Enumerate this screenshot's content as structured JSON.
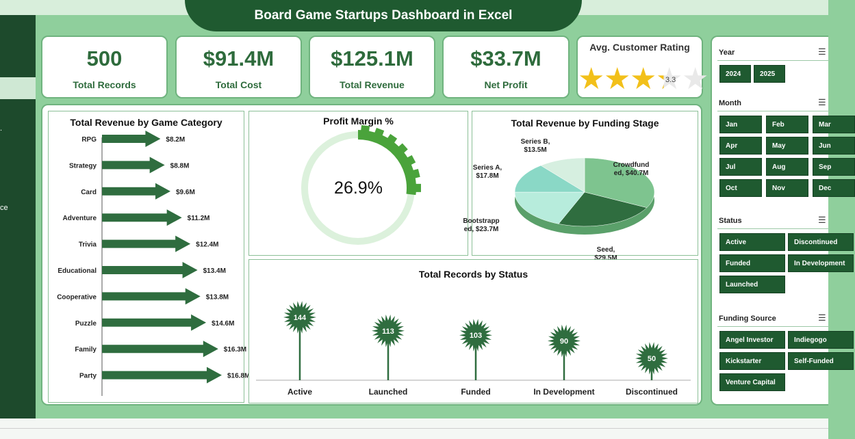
{
  "header": {
    "title": "Board Game Startups Dashboard in Excel"
  },
  "left_rail": {
    "visible_text": "ce"
  },
  "kpis": [
    {
      "value": "500",
      "label": "Total Records"
    },
    {
      "value": "$91.4M",
      "label": "Total Cost"
    },
    {
      "value": "$125.1M",
      "label": "Total Revenue"
    },
    {
      "value": "$33.7M",
      "label": "Net Profit"
    }
  ],
  "rating": {
    "title": "Avg. Customer Rating",
    "value": "3.3",
    "stars_filled": 3.3,
    "stars_total": 5,
    "star_color": "#f2c01a"
  },
  "category_chart": {
    "title": "Total Revenue  by Game Category",
    "rows": [
      {
        "label": "RPG",
        "value": 8.2,
        "display": "$8.2M"
      },
      {
        "label": "Strategy",
        "value": 8.8,
        "display": "$8.8M"
      },
      {
        "label": "Card",
        "value": 9.6,
        "display": "$9.6M"
      },
      {
        "label": "Adventure",
        "value": 11.2,
        "display": "$11.2M"
      },
      {
        "label": "Trivia",
        "value": 12.4,
        "display": "$12.4M"
      },
      {
        "label": "Educational",
        "value": 13.4,
        "display": "$13.4M"
      },
      {
        "label": "Cooperative",
        "value": 13.8,
        "display": "$13.8M"
      },
      {
        "label": "Puzzle",
        "value": 14.6,
        "display": "$14.6M"
      },
      {
        "label": "Family",
        "value": 16.3,
        "display": "$16.3M"
      },
      {
        "label": "Party",
        "value": 16.8,
        "display": "$16.8M"
      }
    ]
  },
  "profit_margin": {
    "title": "Profit Margin %",
    "value": 26.9,
    "display": "26.9%"
  },
  "funding_chart": {
    "title": "Total Revenue by Funding Stage",
    "slices": [
      {
        "label": "Crowdfunded",
        "value": 40.7,
        "label_lines": [
          "Crowdfund",
          "ed, $40.7M"
        ],
        "color": "#7ec48f"
      },
      {
        "label": "Seed",
        "value": 29.5,
        "label_lines": [
          "Seed,",
          "$29.5M"
        ],
        "color": "#2f6d3f"
      },
      {
        "label": "Bootstrapped",
        "value": 23.7,
        "label_lines": [
          "Bootstrapp",
          "ed, $23.7M"
        ],
        "color": "#b7ecdc"
      },
      {
        "label": "Series A",
        "value": 17.8,
        "label_lines": [
          "Series A,",
          "$17.8M"
        ],
        "color": "#8ad8c6"
      },
      {
        "label": "Series B",
        "value": 13.5,
        "label_lines": [
          "Series B,",
          "$13.5M"
        ],
        "color": "#d6efe0"
      }
    ]
  },
  "status_chart": {
    "title": "Total Records by Status",
    "items": [
      {
        "label": "Active",
        "value": 144
      },
      {
        "label": "Launched",
        "value": 113
      },
      {
        "label": "Funded",
        "value": 103
      },
      {
        "label": "In Development",
        "value": 90
      },
      {
        "label": "Discontinued",
        "value": 50
      }
    ]
  },
  "filters": {
    "year": {
      "title": "Year",
      "options": [
        "2024",
        "2025"
      ]
    },
    "month": {
      "title": "Month",
      "options": [
        "Jan",
        "Feb",
        "Mar",
        "Apr",
        "May",
        "Jun",
        "Jul",
        "Aug",
        "Sep",
        "Oct",
        "Nov",
        "Dec"
      ]
    },
    "status": {
      "title": "Status",
      "options": [
        "Active",
        "Discontinued",
        "Funded",
        "In Development",
        "Launched"
      ]
    },
    "funding": {
      "title": "Funding Source",
      "options": [
        "Angel Investor",
        "Indiegogo",
        "Kickstarter",
        "Self-Funded",
        "Venture Capital"
      ]
    },
    "icon": "multi-select-icon"
  },
  "chart_data": [
    {
      "type": "bar",
      "title": "Total Revenue  by Game Category",
      "categories": [
        "RPG",
        "Strategy",
        "Card",
        "Adventure",
        "Trivia",
        "Educational",
        "Cooperative",
        "Puzzle",
        "Family",
        "Party"
      ],
      "values": [
        8.2,
        8.8,
        9.6,
        11.2,
        12.4,
        13.4,
        13.8,
        14.6,
        16.3,
        16.8
      ]
    },
    {
      "type": "pie",
      "title": "Total Revenue by Funding Stage",
      "categories": [
        "Crowdfunded",
        "Seed",
        "Bootstrapped",
        "Series A",
        "Series B"
      ],
      "values": [
        40.7,
        29.5,
        23.7,
        17.8,
        13.5
      ]
    },
    {
      "type": "bar",
      "title": "Total Records by Status",
      "categories": [
        "Active",
        "Launched",
        "Funded",
        "In Development",
        "Discontinued"
      ],
      "values": [
        144,
        113,
        103,
        90,
        50
      ]
    }
  ]
}
